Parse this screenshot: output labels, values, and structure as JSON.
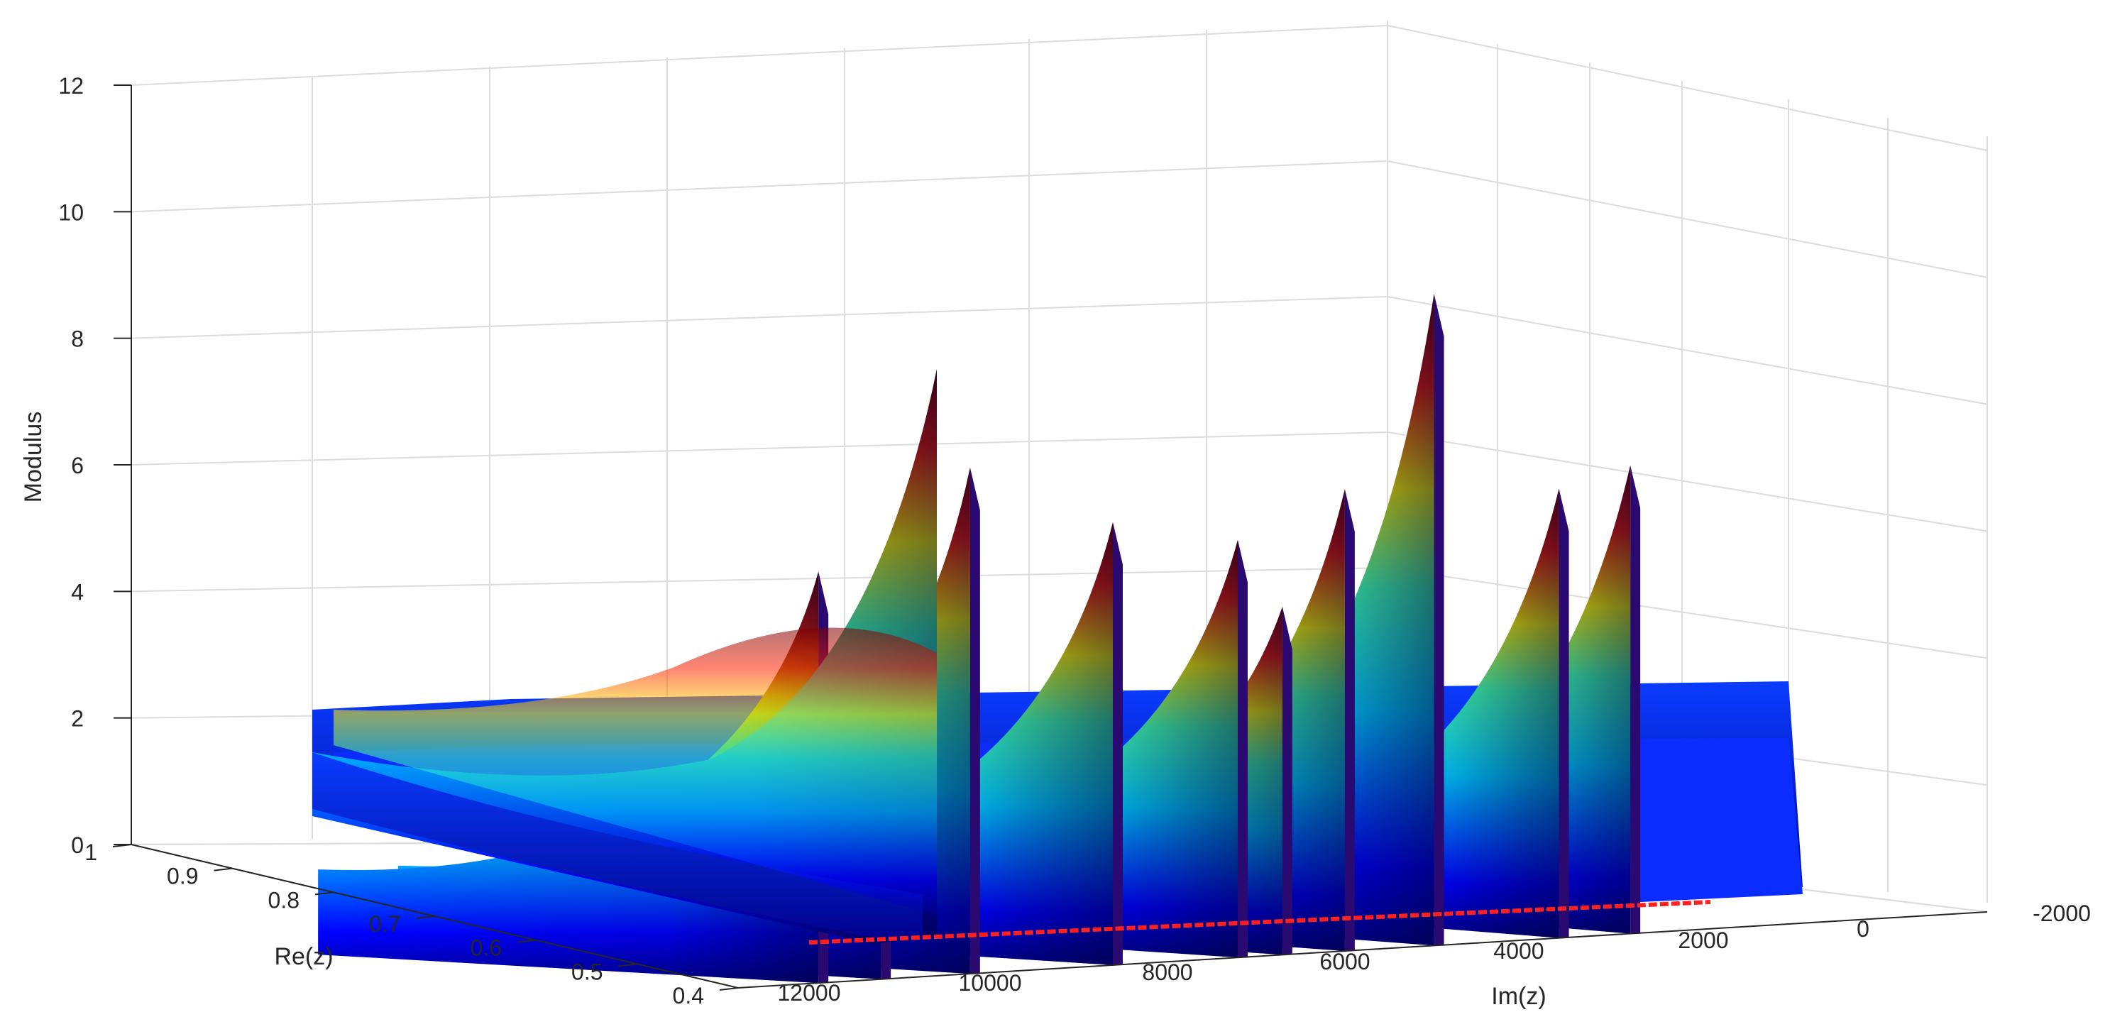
{
  "chart_data": {
    "type": "surface3d",
    "title": "",
    "xlabel": "Im(z)",
    "ylabel": "Re(z)",
    "zlabel": "Modulus",
    "x_ticks": [
      "12000",
      "10000",
      "8000",
      "6000",
      "4000",
      "2000",
      "0",
      "-2000"
    ],
    "y_ticks": [
      "0.4",
      "0.5",
      "0.6",
      "0.7",
      "0.8",
      "0.9",
      "1"
    ],
    "z_ticks": [
      "0",
      "2",
      "4",
      "6",
      "8",
      "10",
      "12"
    ],
    "xlim": [
      -2000,
      12000
    ],
    "ylim": [
      0.4,
      1
    ],
    "zlim": [
      0,
      12
    ],
    "grid": true,
    "colormap": "jet",
    "colormap_colors": [
      "#00008f",
      "#0000ff",
      "#00ffff",
      "#ffff00",
      "#ff0000",
      "#800000"
    ],
    "red_line_color": "#ff2020",
    "ridges": [
      {
        "im": 11100,
        "peak": 6.5
      },
      {
        "im": 10400,
        "peak": 5.6
      },
      {
        "im": 9400,
        "peak": 8.0
      },
      {
        "im": 7800,
        "peak": 7.0
      },
      {
        "im": 6400,
        "peak": 6.6
      },
      {
        "im": 5900,
        "peak": 5.5
      },
      {
        "im": 5200,
        "peak": 7.3
      },
      {
        "im": 4200,
        "peak": 10.3
      },
      {
        "im": 2800,
        "peak": 7.1
      },
      {
        "im": 2000,
        "peak": 7.4
      }
    ]
  }
}
